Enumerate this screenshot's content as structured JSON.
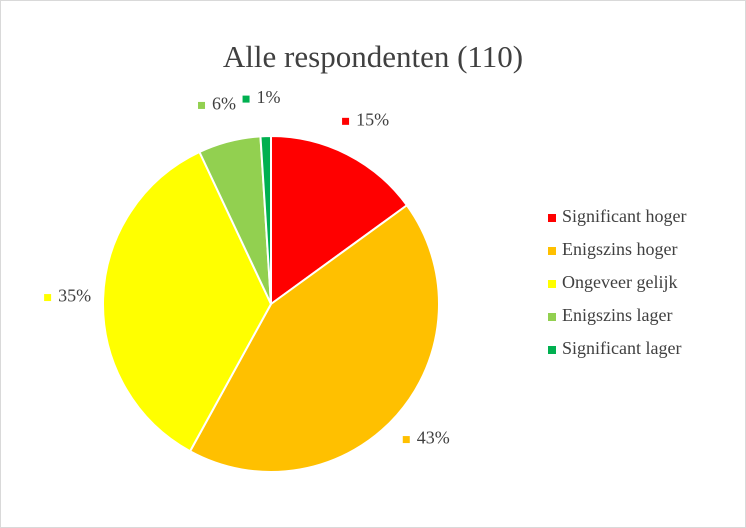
{
  "chart_data": {
    "type": "pie",
    "title": "Alle respondenten (110)",
    "categories": [
      "Significant hoger",
      "Enigszins hoger",
      "Ongeveer gelijk",
      "Enigszins lager",
      "Significant lager"
    ],
    "values": [
      15,
      43,
      35,
      6,
      1
    ],
    "value_labels": [
      "15%",
      "43%",
      "35%",
      "6%",
      "1%"
    ],
    "colors": [
      "#ff0000",
      "#ffc000",
      "#ffff00",
      "#92d050",
      "#00b050"
    ],
    "legend": "right"
  }
}
